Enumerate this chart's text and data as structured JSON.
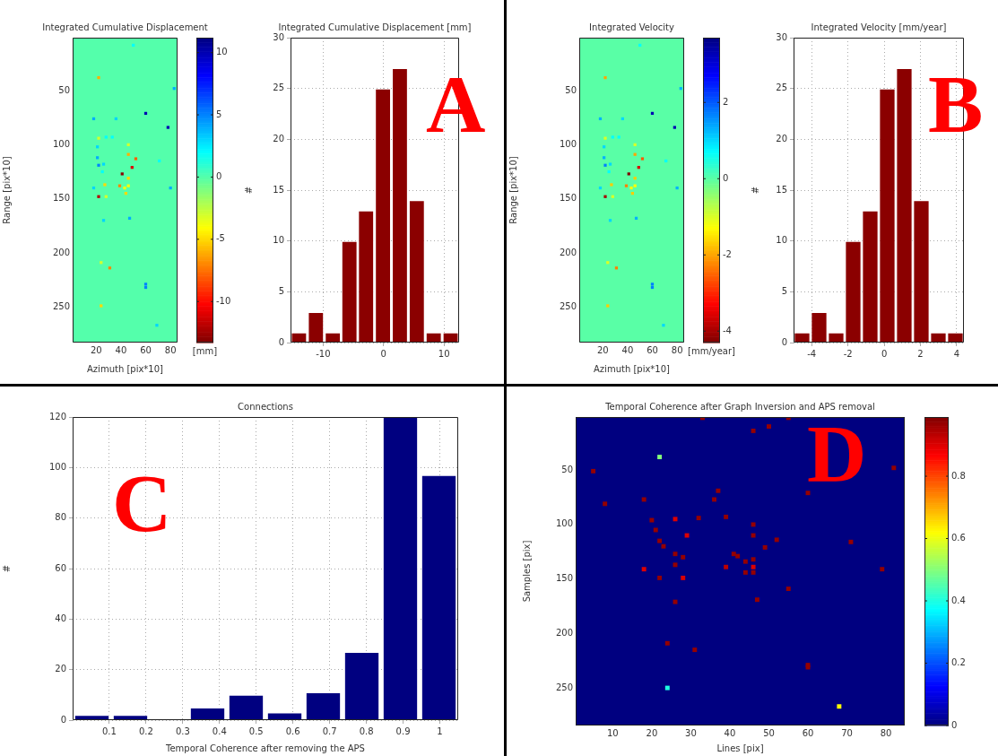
{
  "chart_data": [
    {
      "type": "scatter",
      "title": "Integrated Cumulative Displacement",
      "xlabel": "Azimuth [pix*10]",
      "ylabel": "Range [pix*10]",
      "clabel": "[mm]",
      "marker": "square",
      "grid": false,
      "xlim": [
        1,
        85.7
      ],
      "ylim": [
        283,
        1
      ],
      "xticks": [
        20,
        40,
        60,
        80
      ],
      "yticks": [
        50,
        100,
        150,
        200,
        250
      ],
      "clim": [
        11.2,
        -13.3
      ],
      "cticks": [
        -10,
        -5,
        0,
        5,
        10
      ],
      "x": [
        22,
        50,
        83,
        60,
        78,
        18,
        36,
        22,
        28,
        33,
        21,
        21,
        22,
        26,
        46,
        46,
        52,
        49,
        41,
        46,
        27,
        39,
        43,
        46,
        44,
        22,
        28,
        18,
        80,
        26,
        47,
        71,
        25,
        24,
        31,
        60,
        60,
        24,
        69
      ],
      "values": [
        38,
        8,
        48,
        71,
        84,
        76,
        76,
        94,
        93,
        93,
        102,
        112,
        119,
        118,
        100,
        109,
        113,
        121,
        127,
        131,
        137,
        138,
        140,
        138,
        145,
        148,
        148,
        140,
        140,
        170,
        168,
        115,
        125,
        209,
        214,
        229,
        232,
        249,
        267
      ],
      "cvalues": [
        -6,
        2,
        4,
        10,
        10,
        4,
        3,
        -3,
        2,
        2,
        3,
        4,
        5,
        3,
        -3,
        -6,
        -8,
        -11,
        -13,
        -5,
        -5,
        -7,
        -4,
        -4,
        -5,
        -12,
        -3,
        3,
        4,
        3,
        4,
        2,
        2,
        -3,
        -7,
        5,
        5,
        -5,
        3
      ]
    },
    {
      "type": "histogram",
      "title": "Integrated Cumulative Displacement [mm]",
      "ylabel": "#",
      "color": "#8b0000",
      "grid": true,
      "annotations": [
        "A"
      ],
      "bins": [
        -15.4,
        -12.6,
        -9.8,
        -7.0,
        -4.3,
        -1.5,
        1.3,
        4.1,
        6.9,
        9.7,
        12.5
      ],
      "values": [
        1,
        3,
        1,
        10,
        13,
        25,
        27,
        14,
        1,
        1
      ],
      "xlim": [
        -15.4,
        12.5
      ],
      "ylim": [
        0,
        30
      ],
      "xticks": [
        -10,
        0,
        10
      ],
      "yticks": [
        0,
        5,
        10,
        15,
        20,
        25,
        30
      ]
    },
    {
      "type": "scatter",
      "title": "Integrated Velocity",
      "xlabel": "Azimuth [pix*10]",
      "ylabel": "Range [pix*10]",
      "clabel": "[mm/year]",
      "marker": "square",
      "grid": false,
      "xlim": [
        1,
        85.7
      ],
      "ylim": [
        283,
        1
      ],
      "xticks": [
        20,
        40,
        60,
        80
      ],
      "yticks": [
        50,
        100,
        150,
        200,
        250
      ],
      "clim": [
        3.7,
        -4.3
      ],
      "cticks": [
        -4,
        -2,
        0,
        2
      ],
      "x": [
        22,
        50,
        83,
        60,
        78,
        18,
        36,
        22,
        28,
        33,
        21,
        21,
        22,
        26,
        46,
        46,
        52,
        49,
        41,
        46,
        27,
        39,
        43,
        46,
        44,
        22,
        28,
        18,
        80,
        26,
        47,
        71,
        25,
        24,
        31,
        60,
        60,
        24,
        69
      ],
      "values": [
        38,
        8,
        48,
        71,
        84,
        76,
        76,
        94,
        93,
        93,
        102,
        112,
        119,
        118,
        100,
        109,
        113,
        121,
        127,
        131,
        137,
        138,
        140,
        138,
        145,
        148,
        148,
        140,
        140,
        170,
        168,
        115,
        125,
        209,
        214,
        229,
        232,
        249,
        267
      ],
      "cvalues": [
        -2.0,
        0.7,
        1.3,
        3.3,
        3.3,
        1.3,
        1.0,
        -1.0,
        0.7,
        0.7,
        1.0,
        1.3,
        1.7,
        1.0,
        -1.0,
        -2.0,
        -2.6,
        -3.6,
        -4.3,
        -1.7,
        -1.7,
        -2.3,
        -1.3,
        -1.3,
        -1.7,
        -4.0,
        -1.0,
        1.0,
        1.3,
        1.0,
        1.3,
        0.7,
        0.7,
        -1.0,
        -2.3,
        1.7,
        1.7,
        -1.7,
        1.0
      ]
    },
    {
      "type": "histogram",
      "title": "Integrated Velocity [mm/year]",
      "ylabel": "#",
      "color": "#8b0000",
      "grid": true,
      "annotations": [
        "B"
      ],
      "bins": [
        -5.0,
        -4.06,
        -3.12,
        -2.18,
        -1.24,
        -0.3,
        0.64,
        1.58,
        2.52,
        3.46,
        4.4
      ],
      "values": [
        1,
        3,
        1,
        10,
        13,
        25,
        27,
        14,
        1,
        1
      ],
      "xlim": [
        -5.0,
        4.4
      ],
      "ylim": [
        0,
        30
      ],
      "xticks": [
        -4,
        -2,
        0,
        2,
        4
      ],
      "yticks": [
        0,
        5,
        10,
        15,
        20,
        25,
        30
      ]
    },
    {
      "type": "histogram",
      "title": "Connections",
      "xlabel": "Temporal Coherence after removing the APS",
      "ylabel": "#",
      "color": "#000080",
      "grid": true,
      "annotations": [
        "C"
      ],
      "bins": [
        0.0,
        0.105,
        0.21,
        0.315,
        0.42,
        0.525,
        0.63,
        0.735,
        0.84,
        0.945,
        1.05
      ],
      "values": [
        2,
        2,
        0,
        5,
        10,
        3,
        11,
        27,
        120,
        97
      ],
      "xlim": [
        0.0,
        1.05
      ],
      "ylim": [
        0,
        120
      ],
      "xticks": [
        0.1,
        0.2,
        0.3,
        0.4,
        0.5,
        0.6,
        0.7,
        0.8,
        0.9,
        1
      ],
      "yticks": [
        0,
        20,
        40,
        60,
        80,
        100,
        120
      ]
    },
    {
      "type": "scatter",
      "title": "Temporal Coherence after Graph Inversion and APS removal",
      "xlabel": "Lines [pix]",
      "ylabel": "Samples [pix]",
      "marker": "square",
      "grid": false,
      "annotations": [
        "D"
      ],
      "xlim": [
        0.5,
        84.8
      ],
      "ylim": [
        284.5,
        1.3
      ],
      "xticks": [
        10,
        20,
        30,
        40,
        50,
        60,
        70,
        80
      ],
      "yticks": [
        50,
        100,
        150,
        200,
        250
      ],
      "clim": [
        0,
        0.99
      ],
      "cticks": [
        0,
        0.2,
        0.4,
        0.6,
        0.8
      ],
      "x": [
        33,
        50,
        46,
        55,
        22,
        5,
        8,
        18,
        37,
        36,
        60,
        82,
        20,
        26,
        32,
        39,
        21,
        22,
        23,
        29,
        46,
        46,
        52,
        49,
        71,
        79,
        18,
        22,
        28,
        26,
        28,
        26,
        41,
        42,
        44,
        39,
        44,
        46,
        46,
        46,
        26,
        47,
        55,
        24,
        31,
        60,
        60,
        24,
        68
      ],
      "values": [
        2,
        10,
        14,
        2,
        38,
        51,
        81,
        77,
        69,
        77,
        71,
        48,
        96,
        95,
        94,
        93,
        105,
        115,
        120,
        110,
        100,
        110,
        114,
        121,
        116,
        141,
        141,
        149,
        149,
        127,
        130,
        137,
        127,
        129,
        134,
        139,
        144,
        132,
        139,
        144,
        171,
        169,
        159,
        209,
        215,
        229,
        231,
        250,
        267
      ],
      "cvalues": [
        0.97,
        0.97,
        0.97,
        0.97,
        0.5,
        0.97,
        0.97,
        0.97,
        0.97,
        0.97,
        0.97,
        0.97,
        0.97,
        0.9,
        0.97,
        0.97,
        0.97,
        0.97,
        0.97,
        0.9,
        0.97,
        0.97,
        0.97,
        0.97,
        0.97,
        0.97,
        0.9,
        0.97,
        0.9,
        0.97,
        0.97,
        0.97,
        0.97,
        0.97,
        0.97,
        0.93,
        0.97,
        0.97,
        0.9,
        0.97,
        0.97,
        0.97,
        0.97,
        0.97,
        0.97,
        0.97,
        0.97,
        0.4,
        0.62
      ]
    }
  ]
}
